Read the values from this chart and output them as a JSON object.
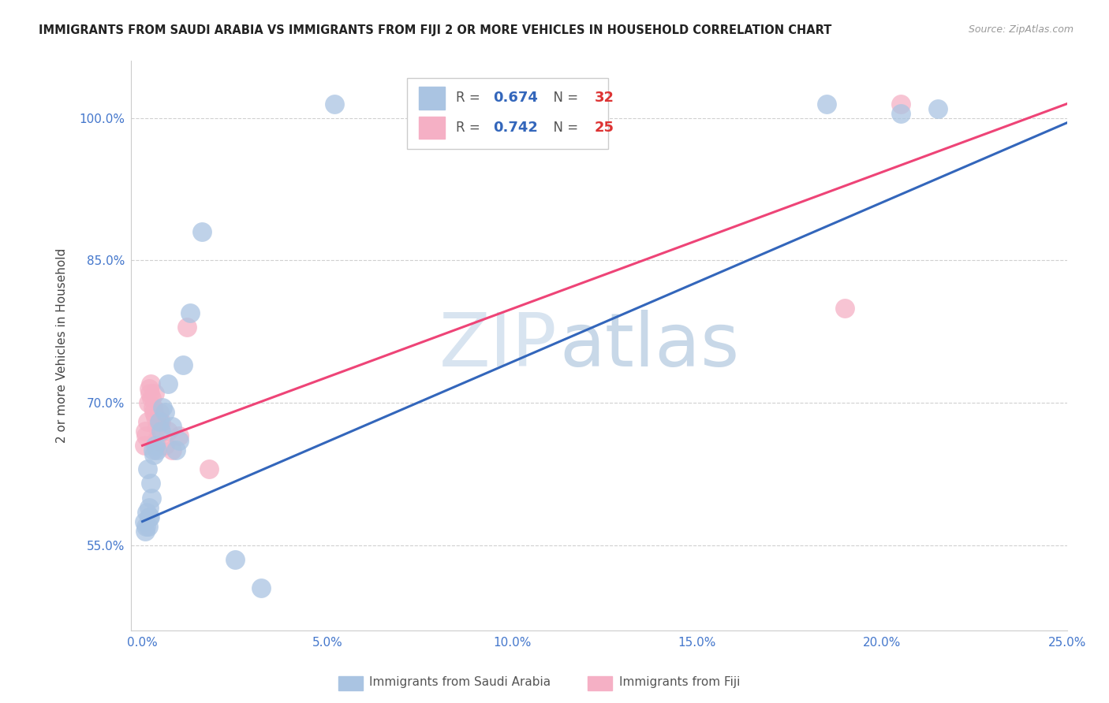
{
  "title": "IMMIGRANTS FROM SAUDI ARABIA VS IMMIGRANTS FROM FIJI 2 OR MORE VEHICLES IN HOUSEHOLD CORRELATION CHART",
  "source": "Source: ZipAtlas.com",
  "ylabel": "2 or more Vehicles in Household",
  "xlabel": "",
  "xlim": [
    -0.3,
    25.0
  ],
  "ylim": [
    46.0,
    106.0
  ],
  "xticks": [
    0.0,
    5.0,
    10.0,
    15.0,
    20.0,
    25.0
  ],
  "yticks": [
    55.0,
    70.0,
    85.0,
    100.0
  ],
  "ytick_labels": [
    "55.0%",
    "70.0%",
    "85.0%",
    "100.0%"
  ],
  "xtick_labels": [
    "0.0%",
    "5.0%",
    "10.0%",
    "15.0%",
    "20.0%",
    "25.0%"
  ],
  "legend1_R": "0.674",
  "legend1_N": "32",
  "legend2_R": "0.742",
  "legend2_N": "25",
  "blue_color": "#aac4e2",
  "pink_color": "#f5b0c5",
  "blue_line_color": "#3366bb",
  "pink_line_color": "#ee4477",
  "saudi_x": [
    0.05,
    0.08,
    0.1,
    0.12,
    0.15,
    0.18,
    0.2,
    0.22,
    0.25,
    0.28,
    0.3,
    0.35,
    0.4,
    0.45,
    0.5,
    0.55,
    0.6,
    0.7,
    0.8,
    0.9,
    1.0,
    1.1,
    1.3,
    1.6,
    2.5,
    3.2,
    5.2,
    18.5,
    20.5,
    21.5,
    0.13,
    0.17
  ],
  "saudi_y": [
    57.5,
    56.5,
    57.0,
    58.5,
    57.0,
    59.0,
    58.0,
    61.5,
    60.0,
    65.0,
    64.5,
    65.5,
    65.0,
    68.0,
    67.0,
    69.5,
    69.0,
    72.0,
    67.5,
    65.0,
    66.0,
    74.0,
    79.5,
    88.0,
    53.5,
    50.5,
    101.5,
    101.5,
    100.5,
    101.0,
    63.0,
    58.0
  ],
  "fiji_x": [
    0.05,
    0.08,
    0.1,
    0.13,
    0.15,
    0.18,
    0.2,
    0.23,
    0.25,
    0.28,
    0.3,
    0.33,
    0.35,
    0.38,
    0.4,
    0.45,
    0.5,
    0.6,
    0.7,
    0.8,
    1.0,
    1.2,
    1.8,
    19.0,
    20.5
  ],
  "fiji_y": [
    65.5,
    67.0,
    66.5,
    68.0,
    70.0,
    71.5,
    71.0,
    72.0,
    70.5,
    69.5,
    69.0,
    71.0,
    68.5,
    66.0,
    67.5,
    69.0,
    68.0,
    65.5,
    67.0,
    65.0,
    66.5,
    78.0,
    63.0,
    80.0,
    101.5
  ],
  "blue_regression": [
    0.0,
    57.5,
    25.0,
    99.5
  ],
  "pink_regression": [
    0.0,
    65.5,
    25.0,
    101.5
  ],
  "background_color": "#ffffff",
  "grid_color": "#d0d0d0",
  "watermark_zip": "ZIP",
  "watermark_atlas": "atlas",
  "watermark_color_zip": "#d8e4f0",
  "watermark_color_atlas": "#c8d8e8"
}
